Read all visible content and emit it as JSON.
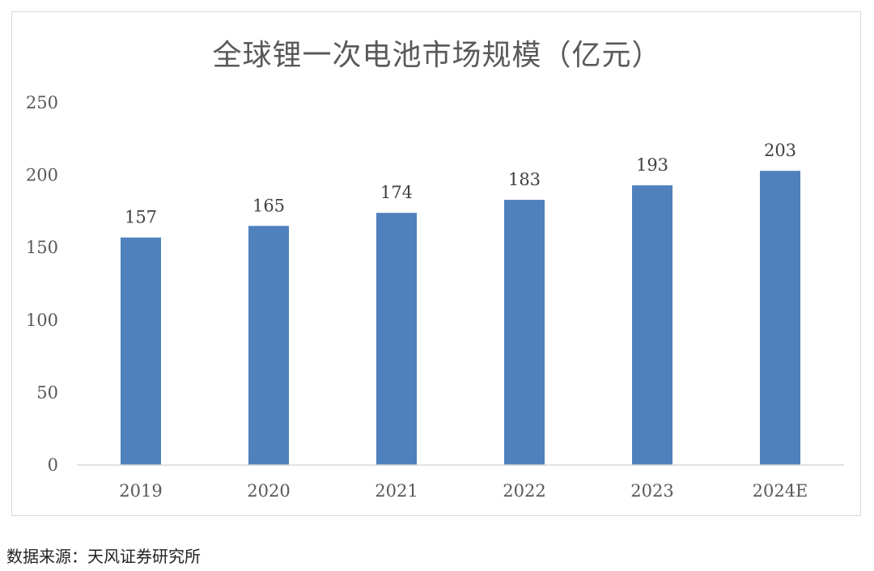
{
  "chart_data": {
    "type": "bar",
    "title": "全球锂一次电池市场规模（亿元）",
    "categories": [
      "2019",
      "2020",
      "2021",
      "2022",
      "2023",
      "2024E"
    ],
    "values": [
      157,
      165,
      174,
      183,
      193,
      203
    ],
    "ylim": [
      0,
      250
    ],
    "yticks": [
      0,
      50,
      100,
      150,
      200,
      250
    ],
    "bar_color": "#4f81bd",
    "grid": false,
    "legend": "none"
  },
  "source_note": "数据来源：天风证券研究所"
}
